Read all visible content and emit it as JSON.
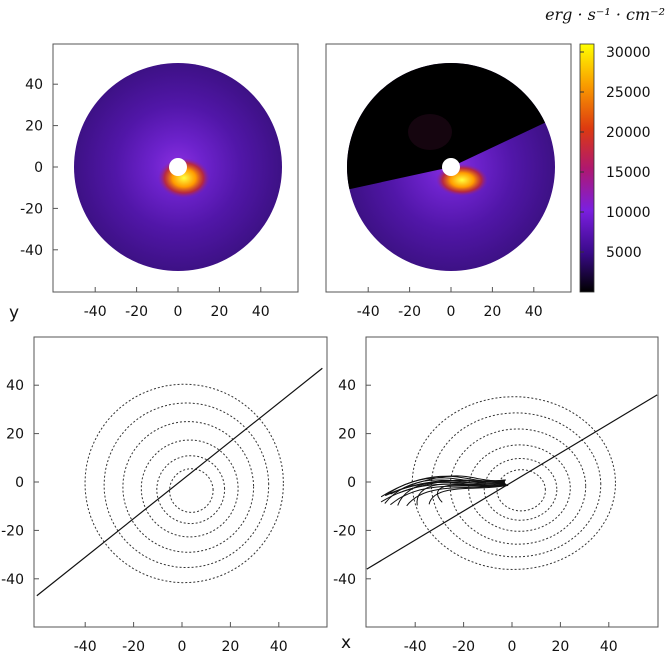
{
  "figure": {
    "colorbar_unit": "erg · s⁻¹ · cm⁻²",
    "side_ylabel": "y",
    "side_xlabel": "x"
  },
  "chart_data": [
    {
      "type": "heatmap",
      "panel": "top-left",
      "xlim": [
        -60,
        60
      ],
      "ylim": [
        -55,
        55
      ],
      "x_ticks": [
        "-40",
        "-20",
        "0",
        "20",
        "40"
      ],
      "y_ticks": [
        "40",
        "20",
        "0",
        "-20",
        "-40"
      ],
      "disk_outer_radius": 50,
      "inner_hole_radius": 4,
      "hotspot": {
        "angle_deg": -20,
        "peak": 30000
      },
      "colorscale": "black-purple-red-yellow",
      "colorbar_ticks": [
        "30000",
        "25000",
        "20000",
        "15000",
        "10000",
        "5000"
      ],
      "colorbar_range": [
        0,
        31000
      ]
    },
    {
      "type": "heatmap",
      "panel": "top-right",
      "xlim": [
        -60,
        60
      ],
      "ylim": [
        -55,
        55
      ],
      "x_ticks": [
        "-40",
        "-20",
        "0",
        "20",
        "40"
      ],
      "disk_outer_radius": 50,
      "inner_hole_radius": 4,
      "dark_sector": true,
      "hotspot": {
        "angle_deg": -15,
        "peak": 30000
      }
    },
    {
      "type": "contour",
      "panel": "bottom-left",
      "xlim": [
        -60,
        60
      ],
      "ylim": [
        -60,
        60
      ],
      "x_ticks": [
        "-40",
        "-20",
        "0",
        "20",
        "40"
      ],
      "y_ticks": [
        "40",
        "20",
        "0",
        "-20",
        "-40"
      ],
      "contour_radii": [
        41,
        34,
        27,
        20,
        14,
        9
      ],
      "line": {
        "x": [
          -60,
          58
        ],
        "y": [
          -47,
          47
        ]
      }
    },
    {
      "type": "contour",
      "panel": "bottom-right",
      "xlim": [
        -60,
        60
      ],
      "ylim": [
        -60,
        60
      ],
      "x_ticks": [
        "-40",
        "-20",
        "0",
        "20",
        "40"
      ],
      "y_ticks": [
        "40",
        "20",
        "0",
        "-20",
        "-40"
      ],
      "contour_radii": [
        42,
        35,
        28,
        21,
        15,
        10
      ],
      "line": {
        "x": [
          -60,
          60
        ],
        "y": [
          -36,
          36
        ]
      }
    }
  ]
}
